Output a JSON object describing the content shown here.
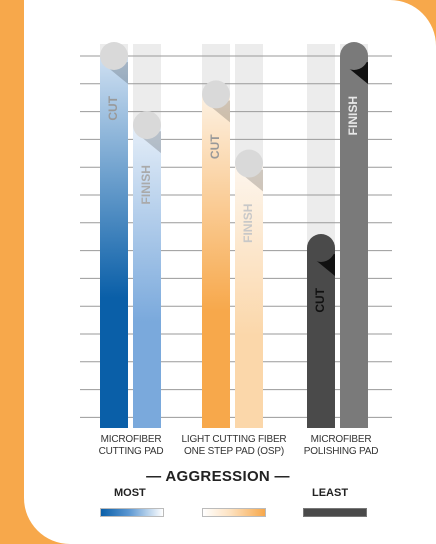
{
  "chart_data": {
    "type": "bar",
    "title": "",
    "xlabel": "",
    "ylabel": "",
    "ylim": [
      0,
      10
    ],
    "grid": true,
    "categories": [
      [
        "MICROFIBER",
        "CUTTING PAD"
      ],
      [
        "LIGHT CUTTING FIBER",
        "ONE STEP PAD (OSP)"
      ],
      [
        "MICROFIBER",
        "POLISHING PAD"
      ]
    ],
    "series": [
      {
        "name": "CUT",
        "values": [
          10,
          9,
          5
        ]
      },
      {
        "name": "FINISH",
        "values": [
          8.2,
          7.2,
          10
        ]
      }
    ],
    "colors": {
      "microfiber_cutting": "#0a5fa8",
      "microfiber_cutting_light": "#7aa9dc",
      "light_cutting_fiber": "#f7a84b",
      "light_cutting_fiber_light": "#fbd7aa",
      "polishing_cut": "#4a4a4a",
      "polishing_finish": "#7a7a7a",
      "knob": "#d9d9d9",
      "grid": "#9a9a9a",
      "track": "#ececec",
      "background": "#f7a84b"
    }
  },
  "aggression": {
    "title": "— AGGRESSION —",
    "most": "MOST",
    "least": "LEAST"
  }
}
